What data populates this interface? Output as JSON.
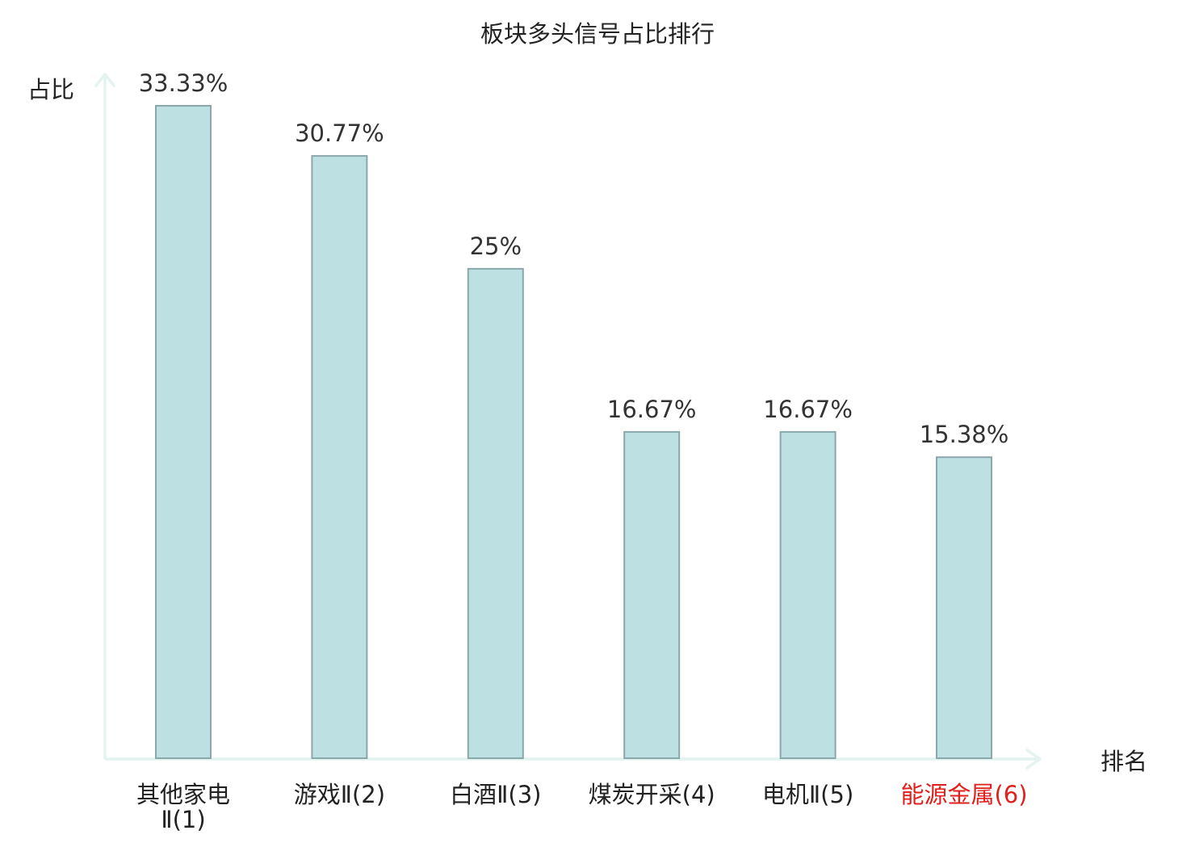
{
  "chart_data": {
    "type": "bar",
    "title": "板块多头信号占比排行",
    "ylabel": "占比",
    "xlabel": "排名",
    "categories": [
      [
        "其他家电",
        "Ⅱ(1)"
      ],
      [
        "游戏Ⅱ(2)"
      ],
      [
        "白酒Ⅱ(3)"
      ],
      [
        "煤炭开采(4)"
      ],
      [
        "电机Ⅱ(5)"
      ],
      [
        "能源金属(6)"
      ]
    ],
    "values": [
      33.33,
      30.77,
      25,
      16.67,
      16.67,
      15.38
    ],
    "value_labels": [
      "33.33%",
      "30.77%",
      "25%",
      "16.67%",
      "16.67%",
      "15.38%"
    ],
    "highlight_index": 5,
    "ylim": [
      0,
      35
    ],
    "grid": false,
    "colors": {
      "bar_fill": "#bde0e3",
      "bar_stroke": "#8aa8ab",
      "axis": "#e3f3f0",
      "text": "#222222",
      "value_label": "#333333",
      "highlight": "#e0201c"
    }
  }
}
